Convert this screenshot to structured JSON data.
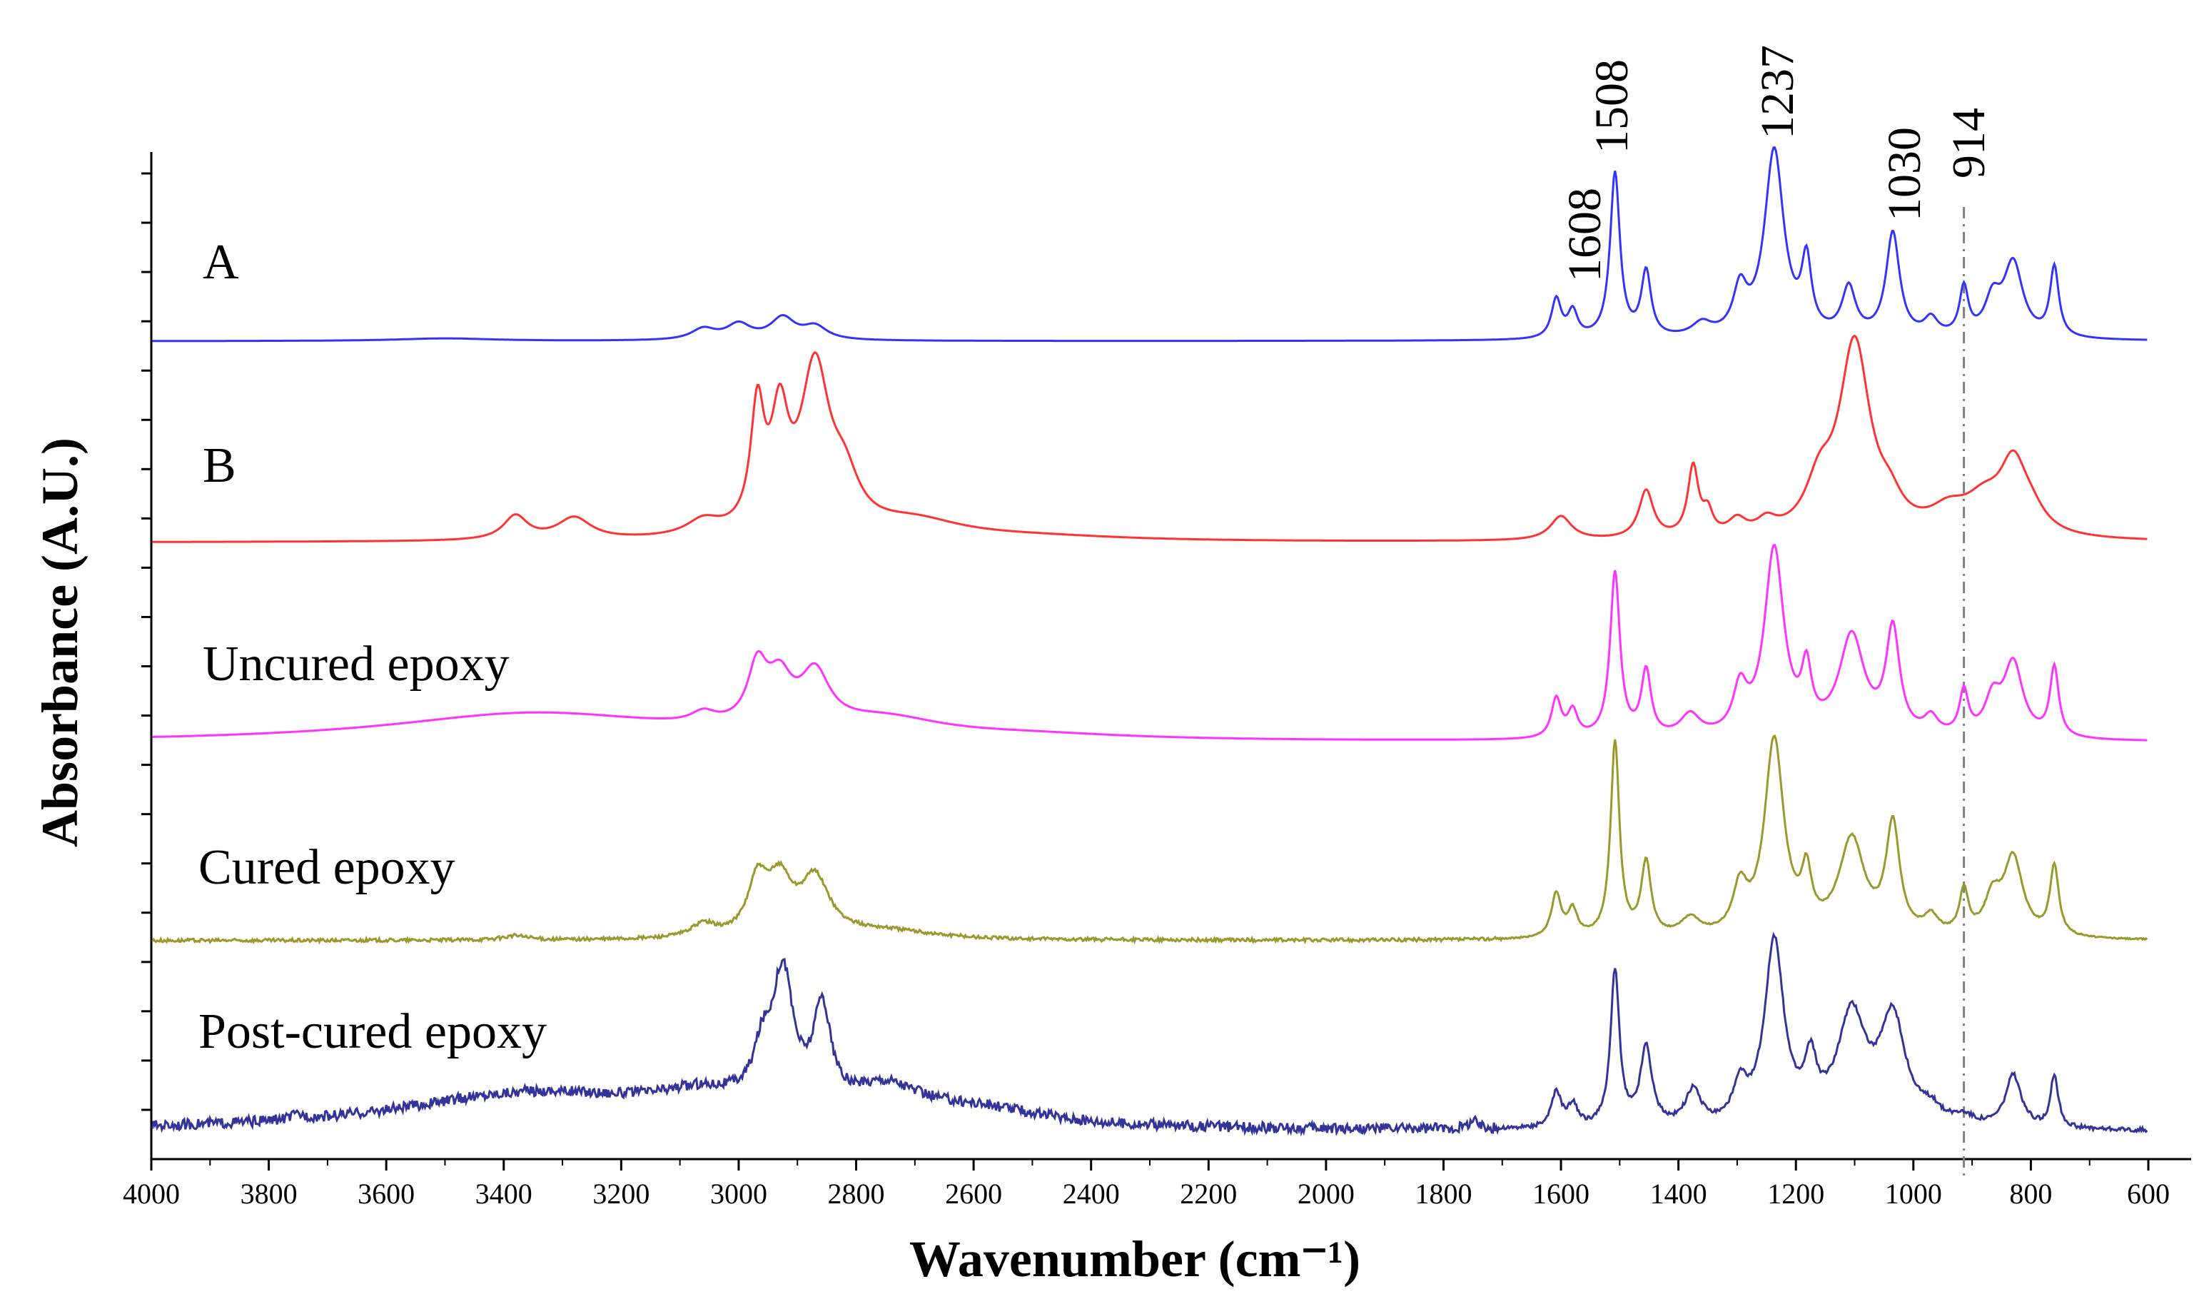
{
  "chart_data": {
    "type": "line",
    "title": "",
    "xlabel": "Wavenumber (cm⁻¹)",
    "ylabel": "Absorbance (A.U.)",
    "xlim": [
      4000,
      600
    ],
    "x_reversed": true,
    "x_ticks": [
      4000,
      3800,
      3600,
      3400,
      3200,
      3000,
      2800,
      2600,
      2400,
      2200,
      2000,
      1800,
      1600,
      1400,
      1200,
      1000,
      800,
      600
    ],
    "y_tick_count": 20,
    "reference_line": {
      "x": 914,
      "style": "dash-dot",
      "color": "#808080"
    },
    "peak_labels": [
      "1608",
      "1508",
      "1237",
      "1030",
      "914"
    ],
    "series": [
      {
        "name": "A",
        "color": "#3333ff",
        "baseline": 0.0,
        "noise": 0.0,
        "peaks": [
          [
            3500,
            0.006,
            100
          ],
          [
            3060,
            0.025,
            25
          ],
          [
            3000,
            0.035,
            25
          ],
          [
            2925,
            0.05,
            25
          ],
          [
            2870,
            0.03,
            25
          ],
          [
            1608,
            0.09,
            10
          ],
          [
            1580,
            0.06,
            10
          ],
          [
            1508,
            0.38,
            10
          ],
          [
            1455,
            0.15,
            10
          ],
          [
            1360,
            0.03,
            20
          ],
          [
            1295,
            0.1,
            14
          ],
          [
            1237,
            0.43,
            20
          ],
          [
            1182,
            0.16,
            10
          ],
          [
            1110,
            0.11,
            14
          ],
          [
            1035,
            0.24,
            14
          ],
          [
            970,
            0.04,
            14
          ],
          [
            914,
            0.11,
            9
          ],
          [
            865,
            0.08,
            16
          ],
          [
            830,
            0.17,
            20
          ],
          [
            760,
            0.16,
            9
          ]
        ]
      },
      {
        "name": "B",
        "color": "#ff3333",
        "baseline": 0.0,
        "noise": 0.0,
        "peaks": [
          [
            3380,
            0.055,
            25
          ],
          [
            3280,
            0.05,
            35
          ],
          [
            3060,
            0.035,
            35
          ],
          [
            2968,
            0.27,
            14
          ],
          [
            2930,
            0.24,
            18
          ],
          [
            2870,
            0.37,
            30
          ],
          [
            2820,
            0.1,
            30
          ],
          [
            2700,
            0.04,
            100
          ],
          [
            2500,
            0.01,
            200
          ],
          [
            1600,
            0.055,
            22
          ],
          [
            1455,
            0.11,
            15
          ],
          [
            1375,
            0.16,
            11
          ],
          [
            1350,
            0.05,
            10
          ],
          [
            1300,
            0.035,
            18
          ],
          [
            1250,
            0.03,
            20
          ],
          [
            1160,
            0.1,
            28
          ],
          [
            1100,
            0.44,
            32
          ],
          [
            1040,
            0.05,
            25
          ],
          [
            940,
            0.05,
            40
          ],
          [
            880,
            0.07,
            40
          ],
          [
            830,
            0.15,
            28
          ],
          [
            800,
            0.04,
            30
          ]
        ]
      },
      {
        "name": "Uncured epoxy",
        "color": "#ff33ff",
        "baseline": 0.0,
        "noise": 0.0,
        "peaks": [
          [
            3350,
            0.065,
            300
          ],
          [
            3060,
            0.025,
            25
          ],
          [
            2968,
            0.13,
            20
          ],
          [
            2930,
            0.1,
            25
          ],
          [
            2870,
            0.12,
            30
          ],
          [
            2750,
            0.04,
            120
          ],
          [
            2500,
            0.01,
            200
          ],
          [
            1608,
            0.09,
            10
          ],
          [
            1580,
            0.06,
            10
          ],
          [
            1508,
            0.38,
            10
          ],
          [
            1455,
            0.15,
            10
          ],
          [
            1380,
            0.05,
            20
          ],
          [
            1295,
            0.1,
            14
          ],
          [
            1237,
            0.43,
            20
          ],
          [
            1182,
            0.13,
            10
          ],
          [
            1105,
            0.23,
            26
          ],
          [
            1035,
            0.24,
            14
          ],
          [
            970,
            0.04,
            14
          ],
          [
            914,
            0.1,
            9
          ],
          [
            865,
            0.08,
            16
          ],
          [
            830,
            0.17,
            20
          ],
          [
            760,
            0.16,
            9
          ]
        ]
      },
      {
        "name": "Cured epoxy",
        "color": "#99992e",
        "baseline": 0.0,
        "noise": 0.004,
        "peaks": [
          [
            3380,
            0.01,
            25
          ],
          [
            3060,
            0.03,
            25
          ],
          [
            2968,
            0.12,
            20
          ],
          [
            2930,
            0.12,
            25
          ],
          [
            2870,
            0.13,
            30
          ],
          [
            2750,
            0.02,
            100
          ],
          [
            1608,
            0.1,
            10
          ],
          [
            1580,
            0.06,
            10
          ],
          [
            1508,
            0.45,
            9
          ],
          [
            1455,
            0.17,
            10
          ],
          [
            1380,
            0.04,
            20
          ],
          [
            1295,
            0.1,
            14
          ],
          [
            1237,
            0.45,
            20
          ],
          [
            1182,
            0.12,
            10
          ],
          [
            1105,
            0.22,
            26
          ],
          [
            1035,
            0.25,
            14
          ],
          [
            970,
            0.04,
            14
          ],
          [
            914,
            0.1,
            9
          ],
          [
            865,
            0.08,
            16
          ],
          [
            830,
            0.18,
            20
          ],
          [
            760,
            0.16,
            9
          ]
        ]
      },
      {
        "name": "Post-cured epoxy",
        "color": "#333399",
        "baseline": 0.01,
        "noise": 0.012,
        "peaks": [
          [
            3750,
            0.01,
            15
          ],
          [
            3350,
            0.085,
            280
          ],
          [
            3060,
            0.05,
            100
          ],
          [
            2960,
            0.1,
            18
          ],
          [
            2925,
            0.3,
            22
          ],
          [
            2858,
            0.22,
            18
          ],
          [
            2750,
            0.07,
            70
          ],
          [
            2600,
            0.04,
            150
          ],
          [
            1750,
            0.02,
            10
          ],
          [
            1608,
            0.08,
            10
          ],
          [
            1580,
            0.05,
            10
          ],
          [
            1508,
            0.36,
            9
          ],
          [
            1455,
            0.18,
            12
          ],
          [
            1375,
            0.08,
            16
          ],
          [
            1295,
            0.08,
            14
          ],
          [
            1237,
            0.42,
            20
          ],
          [
            1175,
            0.12,
            12
          ],
          [
            1105,
            0.25,
            30
          ],
          [
            1035,
            0.24,
            26
          ],
          [
            970,
            0.03,
            20
          ],
          [
            914,
            0.02,
            20
          ],
          [
            830,
            0.12,
            16
          ],
          [
            760,
            0.12,
            8
          ]
        ]
      }
    ]
  }
}
